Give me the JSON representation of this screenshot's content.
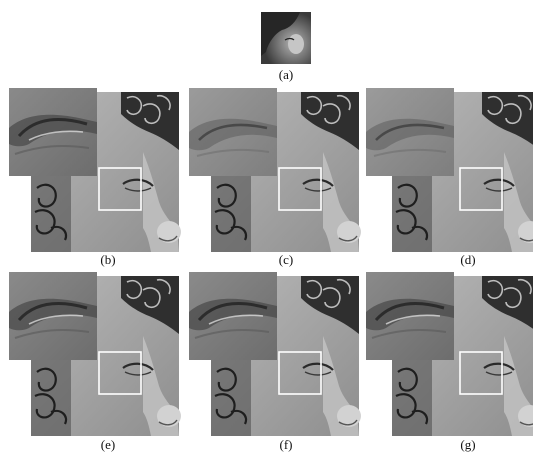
{
  "figure": {
    "panels": [
      {
        "id": "a",
        "caption": "(a)",
        "kind": "low-resolution input"
      },
      {
        "id": "b",
        "caption": "(b)",
        "kind": "result",
        "tone": "sharp"
      },
      {
        "id": "c",
        "caption": "(c)",
        "kind": "result",
        "tone": "soft"
      },
      {
        "id": "d",
        "caption": "(d)",
        "kind": "result",
        "tone": "soft-light"
      },
      {
        "id": "e",
        "caption": "(e)",
        "kind": "result",
        "tone": "sharp"
      },
      {
        "id": "f",
        "caption": "(f)",
        "kind": "result",
        "tone": "medium"
      },
      {
        "id": "g",
        "caption": "(g)",
        "kind": "result",
        "tone": "medium"
      }
    ]
  },
  "colors": {
    "background": "#ffffff",
    "frame_box": "#ffffff",
    "skin": "#a9a9a9",
    "hair": "#2a2a2a",
    "zoom": "#7a7a7a"
  }
}
